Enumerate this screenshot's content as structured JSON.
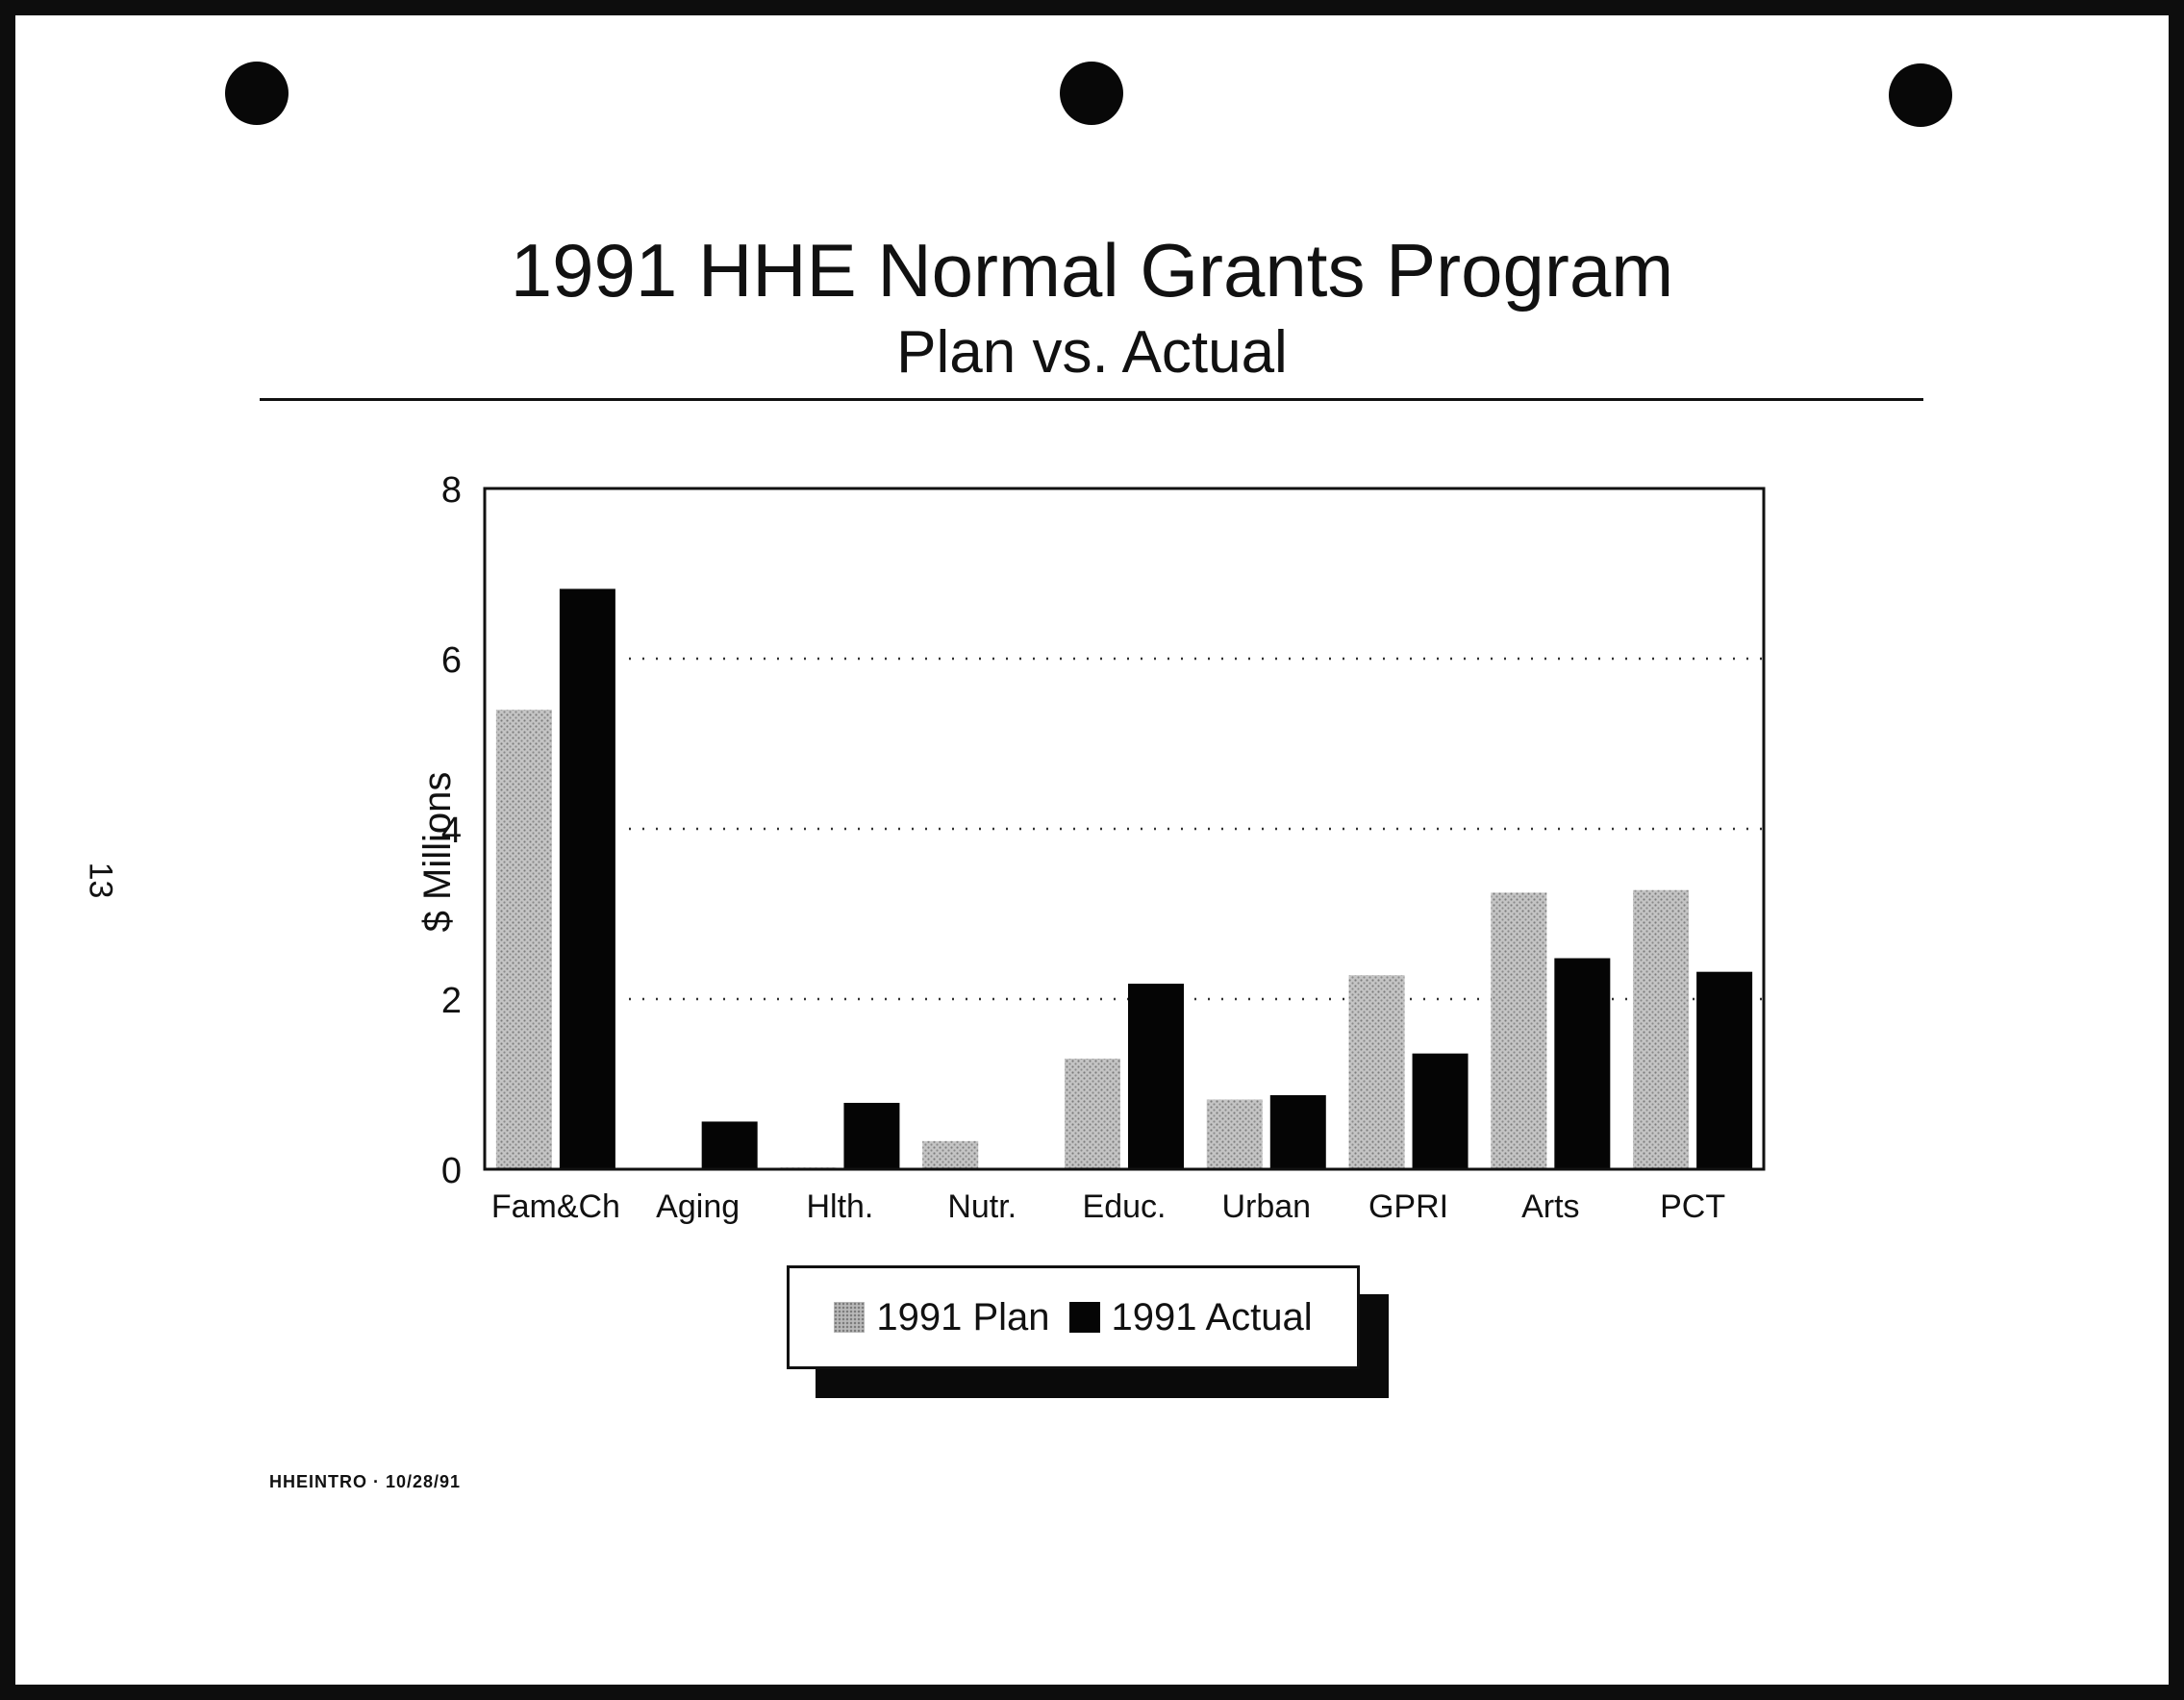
{
  "page": {
    "page_number": "13",
    "footer": "HHEINTRO · 10/28/91"
  },
  "colors": {
    "plan": "#b9b9b9",
    "actual": "#050505",
    "frame": "#0d0d0d"
  },
  "chart_data": {
    "type": "bar",
    "title": "1991 HHE Normal Grants Program",
    "subtitle": "Plan vs. Actual",
    "xlabel": "",
    "ylabel": "$ Millions",
    "ylim": [
      0,
      8
    ],
    "yticks": [
      0,
      2,
      4,
      6,
      8
    ],
    "grid": "horizontal dotted at 2, 4, 6",
    "legend_position": "bottom-center",
    "categories": [
      "Fam&Ch",
      "Aging",
      "Hlth.",
      "Nutr.",
      "Educ.",
      "Urban",
      "GPRI",
      "Arts",
      "PCT"
    ],
    "series": [
      {
        "name": "1991 Plan",
        "values": [
          5.4,
          0,
          0.02,
          0.33,
          1.3,
          0.82,
          2.28,
          3.25,
          3.28
        ]
      },
      {
        "name": "1991 Actual",
        "values": [
          6.82,
          0.56,
          0.78,
          0,
          2.18,
          0.87,
          1.36,
          2.48,
          2.32
        ]
      }
    ]
  }
}
